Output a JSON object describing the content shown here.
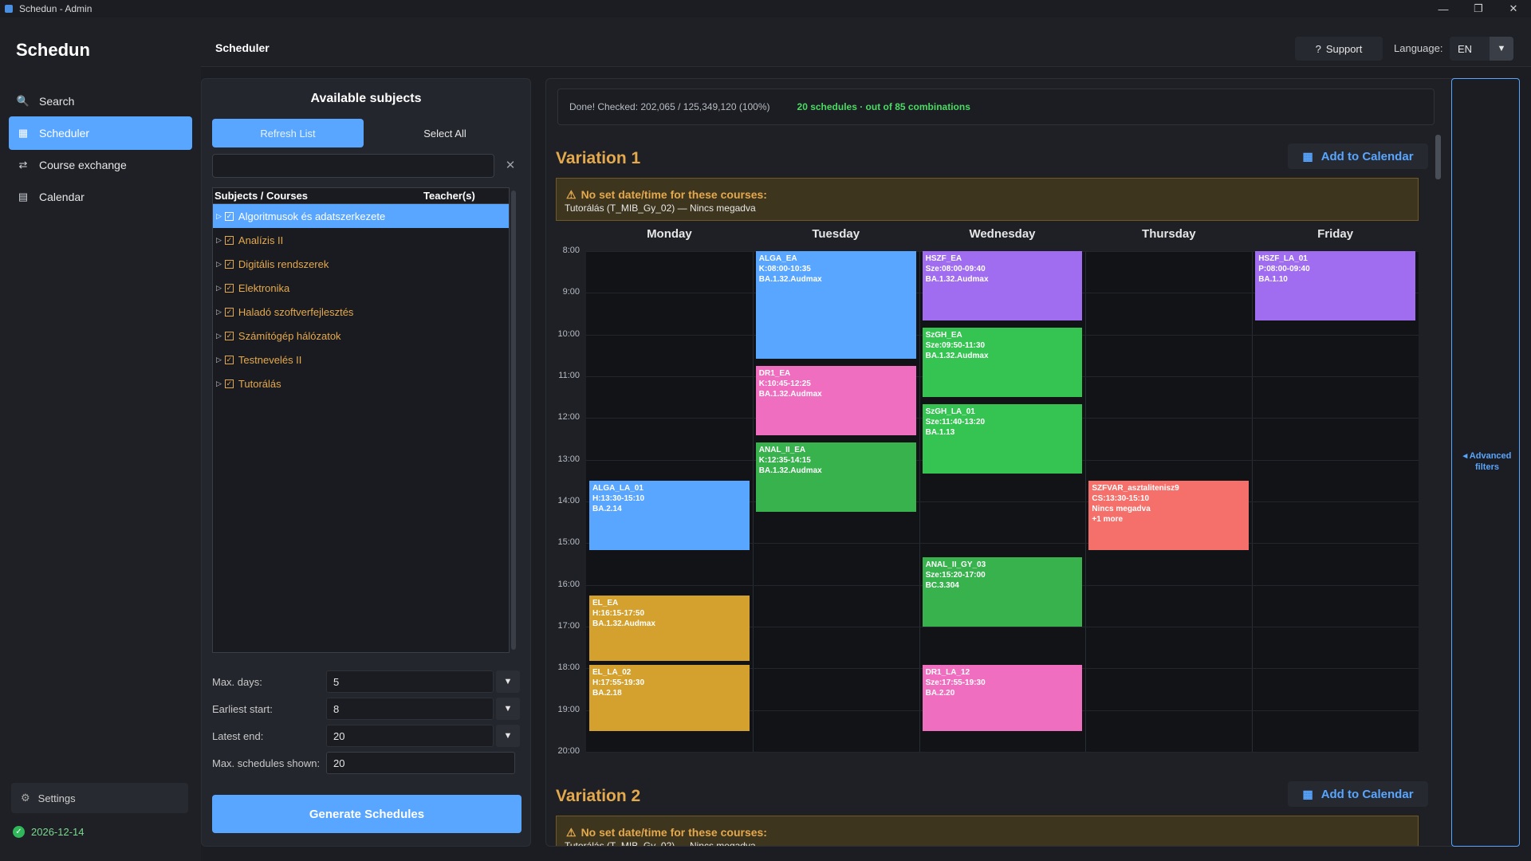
{
  "window": {
    "title": "Schedun - Admin",
    "minimize": "—",
    "maximize": "❐",
    "close": "✕"
  },
  "sidebar": {
    "brand": "Schedun",
    "items": [
      {
        "label": "Search",
        "icon": "search-icon",
        "glyph": "🔍"
      },
      {
        "label": "Scheduler",
        "icon": "scheduler-icon",
        "glyph": "▦"
      },
      {
        "label": "Course exchange",
        "icon": "exchange-icon",
        "glyph": "⇄"
      },
      {
        "label": "Calendar",
        "icon": "calendar-icon",
        "glyph": "▤"
      }
    ],
    "settings_label": "Settings",
    "license_date": "2026-12-14"
  },
  "header": {
    "title": "Scheduler",
    "support_label": "Support",
    "support_glyph": "?",
    "language_label": "Language:",
    "language_value": "EN"
  },
  "subjects_panel": {
    "title": "Available subjects",
    "refresh_label": "Refresh List",
    "select_all_label": "Select All",
    "search_value": "",
    "search_placeholder": "",
    "columns": [
      "Subjects / Courses",
      "Teacher(s)"
    ],
    "rows": [
      "Algoritmusok és adatszerkezete",
      "Analízis II",
      "Digitális rendszerek",
      "Elektronika",
      "Haladó szoftverfejlesztés",
      "Számítógép hálózatok",
      "Testnevelés II",
      "Tutorálás"
    ],
    "params": [
      {
        "label": "Max. days:",
        "value": "5"
      },
      {
        "label": "Earliest start:",
        "value": "8"
      },
      {
        "label": "Latest end:",
        "value": "20"
      },
      {
        "label": "Max. schedules shown:",
        "value": "20"
      }
    ],
    "generate_label": "Generate Schedules"
  },
  "status": {
    "checked": "Done! Checked: 202,065 / 125,349,120 (100%)",
    "result": "20 schedules · out of 85 combinations"
  },
  "advanced_filters_label": "◂ Advanced filters",
  "days": [
    "Monday",
    "Tuesday",
    "Wednesday",
    "Thursday",
    "Friday"
  ],
  "hours": [
    "8:00",
    "9:00",
    "10:00",
    "11:00",
    "12:00",
    "13:00",
    "14:00",
    "15:00",
    "16:00",
    "17:00",
    "18:00",
    "19:00",
    "20:00"
  ],
  "variations": [
    {
      "title": "Variation 1",
      "add_label": "Add to Calendar",
      "warning_title": "No set date/time for these courses:",
      "warning_body": "Tutorálás (T_MIB_Gy_02) — Nincs megadva",
      "events": [
        {
          "day": 0,
          "start": 13.5,
          "end": 15.17,
          "color": "#58a6ff",
          "lines": [
            "ALGA_LA_01",
            "H:13:30-15:10",
            "BA.2.14"
          ]
        },
        {
          "day": 0,
          "start": 16.25,
          "end": 17.83,
          "color": "#d4a02e",
          "lines": [
            "EL_EA",
            "H:16:15-17:50",
            "BA.1.32.Audmax"
          ]
        },
        {
          "day": 0,
          "start": 17.92,
          "end": 19.5,
          "color": "#d4a02e",
          "lines": [
            "EL_LA_02",
            "H:17:55-19:30",
            "BA.2.18"
          ]
        },
        {
          "day": 1,
          "start": 8,
          "end": 10.58,
          "color": "#58a6ff",
          "lines": [
            "ALGA_EA",
            "K:08:00-10:35",
            "BA.1.32.Audmax"
          ]
        },
        {
          "day": 1,
          "start": 10.75,
          "end": 12.42,
          "color": "#f06ec0",
          "lines": [
            "DR1_EA",
            "K:10:45-12:25",
            "BA.1.32.Audmax"
          ]
        },
        {
          "day": 1,
          "start": 12.58,
          "end": 14.25,
          "color": "#37b24d",
          "lines": [
            "ANAL_II_EA",
            "K:12:35-14:15",
            "BA.1.32.Audmax"
          ]
        },
        {
          "day": 2,
          "start": 8,
          "end": 9.67,
          "color": "#a06cf0",
          "lines": [
            "HSZF_EA",
            "Sze:08:00-09:40",
            "BA.1.32.Audmax"
          ]
        },
        {
          "day": 2,
          "start": 9.83,
          "end": 11.5,
          "color": "#35c451",
          "lines": [
            "SzGH_EA",
            "Sze:09:50-11:30",
            "BA.1.32.Audmax"
          ]
        },
        {
          "day": 2,
          "start": 11.67,
          "end": 13.33,
          "color": "#35c451",
          "lines": [
            "SzGH_LA_01",
            "Sze:11:40-13:20",
            "BA.1.13"
          ]
        },
        {
          "day": 2,
          "start": 15.33,
          "end": 17,
          "color": "#37b24d",
          "lines": [
            "ANAL_II_GY_03",
            "Sze:15:20-17:00",
            "BC.3.304"
          ]
        },
        {
          "day": 2,
          "start": 17.92,
          "end": 19.5,
          "color": "#f06ec0",
          "lines": [
            "DR1_LA_12",
            "Sze:17:55-19:30",
            "BA.2.20"
          ]
        },
        {
          "day": 3,
          "start": 13.5,
          "end": 15.17,
          "color": "#f5706a",
          "lines": [
            "SZFVAR_asztalitenisz9",
            "CS:13:30-15:10",
            "Nincs megadva",
            "+1 more"
          ]
        },
        {
          "day": 4,
          "start": 8,
          "end": 9.67,
          "color": "#a06cf0",
          "lines": [
            "HSZF_LA_01",
            "P:08:00-09:40",
            "BA.1.10"
          ]
        }
      ]
    },
    {
      "title": "Variation 2",
      "add_label": "Add to Calendar",
      "warning_title": "No set date/time for these courses:",
      "warning_body": "Tutorálás (T_MIB_Gy_02) — Nincs megadva"
    }
  ],
  "colors": {
    "accent": "#58a6ff",
    "warning": "#e5a94d",
    "success": "#4cd964"
  }
}
